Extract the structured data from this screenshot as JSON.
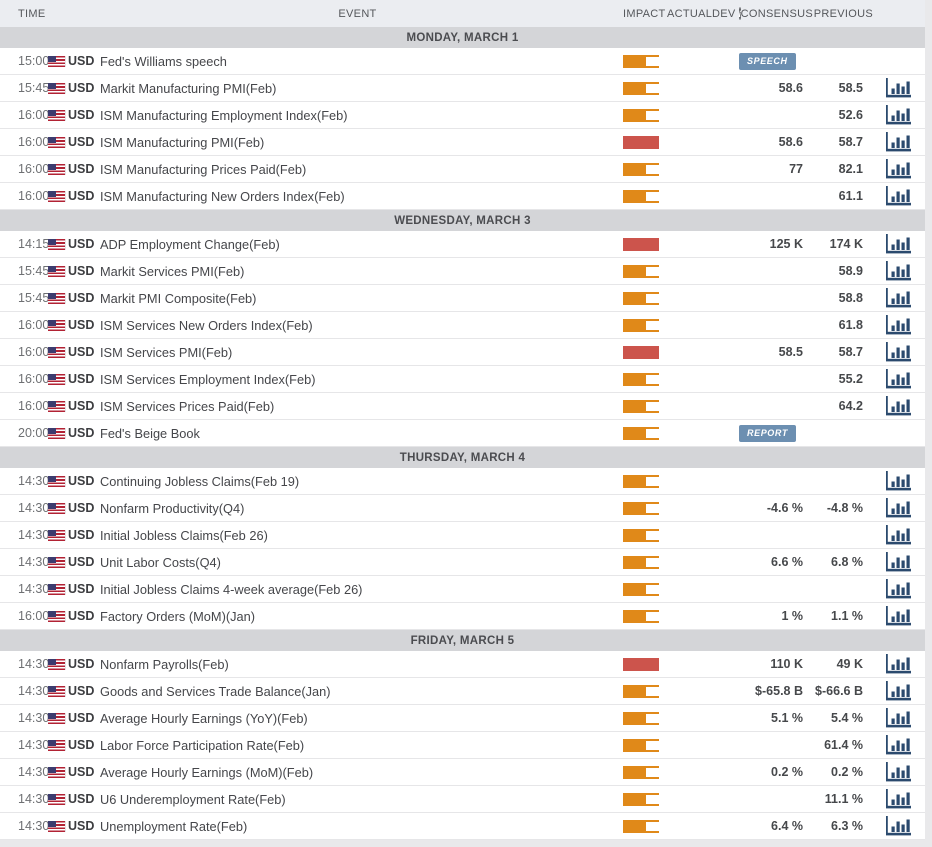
{
  "columns": {
    "time": "TIME",
    "event": "EVENT",
    "impact": "IMPACT",
    "actual": "ACTUAL",
    "dev": "DEV",
    "dev_info": "i",
    "consensus": "CONSENSUS",
    "previous": "PREVIOUS"
  },
  "colors": {
    "impact_medium": "#E08919",
    "impact_high": "#CC544C",
    "badge_bg": "#6C8FB1",
    "chart_icon": "#2B4A6E"
  },
  "days": [
    {
      "label": "MONDAY, MARCH 1",
      "events": [
        {
          "time": "15:00",
          "currency": "USD",
          "name": "Fed's Williams speech",
          "impact": "medium",
          "actual": "",
          "dev": "",
          "consensus": "",
          "badge": "SPEECH",
          "previous": "",
          "chart": false
        },
        {
          "time": "15:45",
          "currency": "USD",
          "name": "Markit Manufacturing PMI(Feb)",
          "impact": "medium",
          "actual": "",
          "dev": "",
          "consensus": "58.6",
          "previous": "58.5",
          "chart": true
        },
        {
          "time": "16:00",
          "currency": "USD",
          "name": "ISM Manufacturing Employment Index(Feb)",
          "impact": "medium",
          "actual": "",
          "dev": "",
          "consensus": "",
          "previous": "52.6",
          "chart": true
        },
        {
          "time": "16:00",
          "currency": "USD",
          "name": "ISM Manufacturing PMI(Feb)",
          "impact": "high",
          "actual": "",
          "dev": "",
          "consensus": "58.6",
          "previous": "58.7",
          "chart": true
        },
        {
          "time": "16:00",
          "currency": "USD",
          "name": "ISM Manufacturing Prices Paid(Feb)",
          "impact": "medium",
          "actual": "",
          "dev": "",
          "consensus": "77",
          "previous": "82.1",
          "chart": true
        },
        {
          "time": "16:00",
          "currency": "USD",
          "name": "ISM Manufacturing New Orders Index(Feb)",
          "impact": "medium",
          "actual": "",
          "dev": "",
          "consensus": "",
          "previous": "61.1",
          "chart": true
        }
      ]
    },
    {
      "label": "WEDNESDAY, MARCH 3",
      "events": [
        {
          "time": "14:15",
          "currency": "USD",
          "name": "ADP Employment Change(Feb)",
          "impact": "high",
          "actual": "",
          "dev": "",
          "consensus": "125 K",
          "previous": "174 K",
          "chart": true
        },
        {
          "time": "15:45",
          "currency": "USD",
          "name": "Markit Services PMI(Feb)",
          "impact": "medium",
          "actual": "",
          "dev": "",
          "consensus": "",
          "previous": "58.9",
          "chart": true
        },
        {
          "time": "15:45",
          "currency": "USD",
          "name": "Markit PMI Composite(Feb)",
          "impact": "medium",
          "actual": "",
          "dev": "",
          "consensus": "",
          "previous": "58.8",
          "chart": true
        },
        {
          "time": "16:00",
          "currency": "USD",
          "name": "ISM Services New Orders Index(Feb)",
          "impact": "medium",
          "actual": "",
          "dev": "",
          "consensus": "",
          "previous": "61.8",
          "chart": true
        },
        {
          "time": "16:00",
          "currency": "USD",
          "name": "ISM Services PMI(Feb)",
          "impact": "high",
          "actual": "",
          "dev": "",
          "consensus": "58.5",
          "previous": "58.7",
          "chart": true
        },
        {
          "time": "16:00",
          "currency": "USD",
          "name": "ISM Services Employment Index(Feb)",
          "impact": "medium",
          "actual": "",
          "dev": "",
          "consensus": "",
          "previous": "55.2",
          "chart": true
        },
        {
          "time": "16:00",
          "currency": "USD",
          "name": "ISM Services Prices Paid(Feb)",
          "impact": "medium",
          "actual": "",
          "dev": "",
          "consensus": "",
          "previous": "64.2",
          "chart": true
        },
        {
          "time": "20:00",
          "currency": "USD",
          "name": "Fed's Beige Book",
          "impact": "medium",
          "actual": "",
          "dev": "",
          "consensus": "",
          "badge": "REPORT",
          "previous": "",
          "chart": false
        }
      ]
    },
    {
      "label": "THURSDAY, MARCH 4",
      "events": [
        {
          "time": "14:30",
          "currency": "USD",
          "name": "Continuing Jobless Claims(Feb 19)",
          "impact": "medium",
          "actual": "",
          "dev": "",
          "consensus": "",
          "previous": "",
          "chart": true
        },
        {
          "time": "14:30",
          "currency": "USD",
          "name": "Nonfarm Productivity(Q4)",
          "impact": "medium",
          "actual": "",
          "dev": "",
          "consensus": "-4.6 %",
          "previous": "-4.8 %",
          "chart": true
        },
        {
          "time": "14:30",
          "currency": "USD",
          "name": "Initial Jobless Claims(Feb 26)",
          "impact": "medium",
          "actual": "",
          "dev": "",
          "consensus": "",
          "previous": "",
          "chart": true
        },
        {
          "time": "14:30",
          "currency": "USD",
          "name": "Unit Labor Costs(Q4)",
          "impact": "medium",
          "actual": "",
          "dev": "",
          "consensus": "6.6 %",
          "previous": "6.8 %",
          "chart": true
        },
        {
          "time": "14:30",
          "currency": "USD",
          "name": "Initial Jobless Claims 4-week average(Feb 26)",
          "impact": "medium",
          "actual": "",
          "dev": "",
          "consensus": "",
          "previous": "",
          "chart": true
        },
        {
          "time": "16:00",
          "currency": "USD",
          "name": "Factory Orders (MoM)(Jan)",
          "impact": "medium",
          "actual": "",
          "dev": "",
          "consensus": "1 %",
          "previous": "1.1 %",
          "chart": true
        }
      ]
    },
    {
      "label": "FRIDAY, MARCH 5",
      "events": [
        {
          "time": "14:30",
          "currency": "USD",
          "name": "Nonfarm Payrolls(Feb)",
          "impact": "high",
          "actual": "",
          "dev": "",
          "consensus": "110 K",
          "previous": "49 K",
          "chart": true
        },
        {
          "time": "14:30",
          "currency": "USD",
          "name": "Goods and Services Trade Balance(Jan)",
          "impact": "medium",
          "actual": "",
          "dev": "",
          "consensus": "$-65.8 B",
          "previous": "$-66.6 B",
          "chart": true
        },
        {
          "time": "14:30",
          "currency": "USD",
          "name": "Average Hourly Earnings (YoY)(Feb)",
          "impact": "medium",
          "actual": "",
          "dev": "",
          "consensus": "5.1 %",
          "previous": "5.4 %",
          "chart": true
        },
        {
          "time": "14:30",
          "currency": "USD",
          "name": "Labor Force Participation Rate(Feb)",
          "impact": "medium",
          "actual": "",
          "dev": "",
          "consensus": "",
          "previous": "61.4 %",
          "chart": true
        },
        {
          "time": "14:30",
          "currency": "USD",
          "name": "Average Hourly Earnings (MoM)(Feb)",
          "impact": "medium",
          "actual": "",
          "dev": "",
          "consensus": "0.2 %",
          "previous": "0.2 %",
          "chart": true
        },
        {
          "time": "14:30",
          "currency": "USD",
          "name": "U6 Underemployment Rate(Feb)",
          "impact": "medium",
          "actual": "",
          "dev": "",
          "consensus": "",
          "previous": "11.1 %",
          "chart": true
        },
        {
          "time": "14:30",
          "currency": "USD",
          "name": "Unemployment Rate(Feb)",
          "impact": "medium",
          "actual": "",
          "dev": "",
          "consensus": "6.4 %",
          "previous": "6.3 %",
          "chart": true
        }
      ]
    }
  ]
}
